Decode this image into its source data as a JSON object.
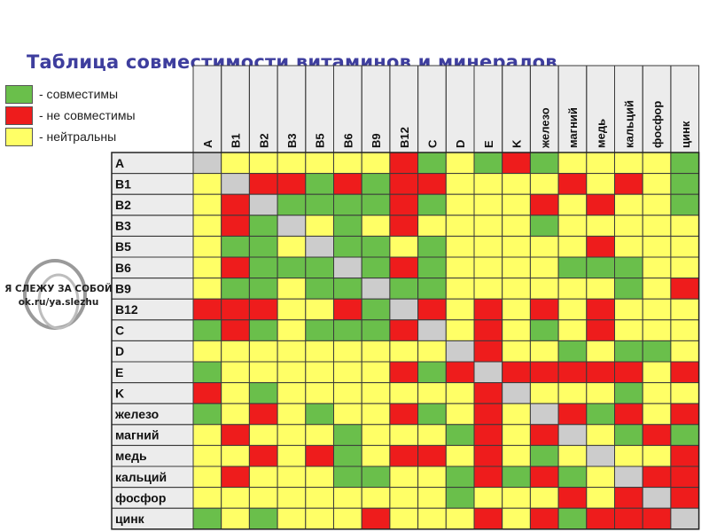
{
  "title": "Таблица совместимости витаминов и минералов",
  "legend": [
    {
      "color": "#6abf4b",
      "label": "- совместимы"
    },
    {
      "color": "#ee1c1c",
      "label": "- не совместимы"
    },
    {
      "color": "#ffff66",
      "label": "- нейтральны"
    }
  ],
  "watermark": {
    "line1": "Я СЛЕЖУ ЗА СОБОЙ",
    "line2": "ok.ru/ya.slezhu"
  },
  "colors": {
    "G": "#6abf4b",
    "R": "#ee1c1c",
    "Y": "#ffff66",
    "N": "#cccccc"
  },
  "chart_data": {
    "type": "heatmap",
    "columns": [
      "A",
      "B1",
      "B2",
      "B3",
      "B5",
      "B6",
      "B9",
      "B12",
      "C",
      "D",
      "E",
      "K",
      "железо",
      "магний",
      "медь",
      "кальций",
      "фосфор",
      "цинк"
    ],
    "rows": [
      "A",
      "B1",
      "B2",
      "B3",
      "B5",
      "B6",
      "B9",
      "B12",
      "C",
      "D",
      "E",
      "K",
      "железо",
      "магний",
      "медь",
      "кальций",
      "фосфор",
      "цинк"
    ],
    "legend_values": {
      "G": "совместимы",
      "R": "не совместимы",
      "Y": "нейтральны",
      "N": "—"
    },
    "matrix": [
      "NYYYYYYRGYGRGYYYYG",
      "YNRRGRGRRYYYYRYRYG",
      "YRNGGGGRGYYYRYRYYG",
      "YRGNYGYRYYYYGYYYYY",
      "YGGYNGGYGYYYYYRYYY",
      "YRGGGNGRGYYYYGGGYY",
      "YGGYGGNGGYYYYYYGYR",
      "RRRYYRGNRYRYRYRYYY",
      "GRGYGGGRNYRYGYRYYY",
      "YYYYYYYYYNRYYGYGGY",
      "GYYYYYYRGRNRRRRRYR",
      "RYGYYYYYYYRNYYYGYY",
      "GYRYGYYRGYRYNRGRYR",
      "YRYYYGYYYGRYRNYGRG",
      "YYRYRGYRRYRYGYNYYR",
      "YRYYYGGYYGRGRGYNRR",
      "YYYYYYYYYGYYYRYRNR",
      "GYGYYYRYYYRYRGRRRN"
    ]
  }
}
